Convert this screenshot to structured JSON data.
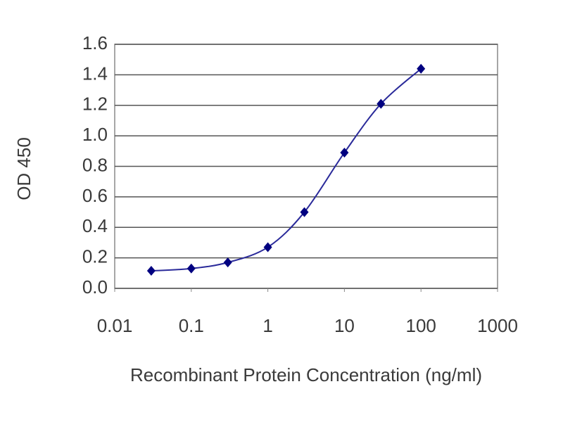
{
  "chart_data": {
    "type": "line",
    "x_label": "Recombinant Protein Concentration (ng/ml)",
    "y_label": "OD 450",
    "x": [
      0.03,
      0.1,
      0.3,
      1,
      3,
      10,
      30,
      100
    ],
    "series": [
      {
        "color": "#2a2a9a",
        "marker_color": "#000080",
        "values": [
          0.115,
          0.13,
          0.17,
          0.27,
          0.5,
          0.89,
          1.21,
          1.44
        ]
      }
    ],
    "x_log": true,
    "xlim": [
      0.01,
      1000
    ],
    "xticks": [
      0.01,
      0.1,
      1,
      10,
      100,
      1000
    ],
    "ylim": [
      0,
      1.6
    ],
    "yticks": [
      {
        "value": 0,
        "label": "0.0"
      },
      0.2,
      0.4,
      0.6,
      0.8,
      {
        "value": 1,
        "label": "1.0"
      },
      1.2,
      1.4,
      1.6
    ],
    "grid": true
  }
}
